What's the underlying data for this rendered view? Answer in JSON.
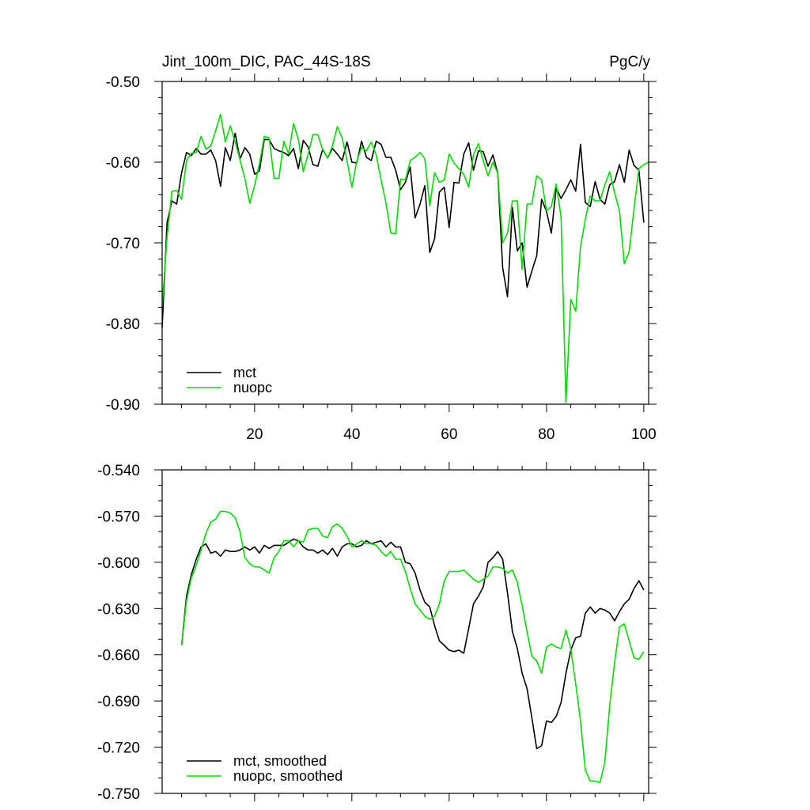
{
  "colors": {
    "mct": "#000000",
    "nuopc": "#00dd00"
  },
  "chart_data": [
    {
      "type": "line",
      "title_left": "Jint_100m_DIC, PAC_44S-18S",
      "title_right": "PgC/y",
      "xlim": [
        1,
        101
      ],
      "ylim": [
        -0.9,
        -0.5
      ],
      "xticks": [
        20,
        40,
        60,
        80,
        100
      ],
      "xticklabels": [
        "20",
        "40",
        "60",
        "80",
        "100"
      ],
      "yticks": [
        -0.9,
        -0.8,
        -0.7,
        -0.6,
        -0.5
      ],
      "yticklabels": [
        "-0.90",
        "-0.80",
        "-0.70",
        "-0.60",
        "-0.50"
      ],
      "legend_location": "lower-left",
      "series": [
        {
          "name": "mct",
          "color": "#000000",
          "x_start": 1,
          "values": [
            -0.805,
            -0.675,
            -0.648,
            -0.652,
            -0.613,
            -0.588,
            -0.592,
            -0.583,
            -0.59,
            -0.59,
            -0.585,
            -0.598,
            -0.63,
            -0.582,
            -0.598,
            -0.564,
            -0.596,
            -0.582,
            -0.59,
            -0.615,
            -0.611,
            -0.572,
            -0.572,
            -0.583,
            -0.586,
            -0.588,
            -0.592,
            -0.583,
            -0.608,
            -0.573,
            -0.581,
            -0.603,
            -0.605,
            -0.584,
            -0.595,
            -0.583,
            -0.59,
            -0.598,
            -0.575,
            -0.6,
            -0.601,
            -0.574,
            -0.594,
            -0.598,
            -0.574,
            -0.578,
            -0.594,
            -0.594,
            -0.61,
            -0.634,
            -0.625,
            -0.606,
            -0.669,
            -0.652,
            -0.629,
            -0.712,
            -0.695,
            -0.637,
            -0.631,
            -0.681,
            -0.625,
            -0.626,
            -0.59,
            -0.576,
            -0.61,
            -0.586,
            -0.587,
            -0.605,
            -0.591,
            -0.614,
            -0.731,
            -0.767,
            -0.656,
            -0.71,
            -0.7,
            -0.755,
            -0.735,
            -0.716,
            -0.646,
            -0.661,
            -0.688,
            -0.632,
            -0.645,
            -0.634,
            -0.622,
            -0.636,
            -0.578,
            -0.65,
            -0.655,
            -0.624,
            -0.646,
            -0.652,
            -0.628,
            -0.624,
            -0.603,
            -0.625,
            -0.585,
            -0.604,
            -0.61,
            -0.675
          ]
        },
        {
          "name": "nuopc",
          "color": "#00dd00",
          "x_start": 1,
          "values": [
            -0.779,
            -0.693,
            -0.636,
            -0.635,
            -0.646,
            -0.598,
            -0.589,
            -0.588,
            -0.568,
            -0.584,
            -0.58,
            -0.561,
            -0.541,
            -0.575,
            -0.555,
            -0.575,
            -0.597,
            -0.62,
            -0.651,
            -0.629,
            -0.602,
            -0.568,
            -0.57,
            -0.62,
            -0.62,
            -0.574,
            -0.59,
            -0.552,
            -0.572,
            -0.612,
            -0.59,
            -0.566,
            -0.566,
            -0.585,
            -0.595,
            -0.58,
            -0.556,
            -0.57,
            -0.598,
            -0.631,
            -0.599,
            -0.582,
            -0.586,
            -0.575,
            -0.591,
            -0.622,
            -0.65,
            -0.688,
            -0.689,
            -0.621,
            -0.622,
            -0.598,
            -0.594,
            -0.588,
            -0.596,
            -0.654,
            -0.613,
            -0.625,
            -0.622,
            -0.59,
            -0.601,
            -0.608,
            -0.615,
            -0.631,
            -0.591,
            -0.577,
            -0.598,
            -0.617,
            -0.6,
            -0.614,
            -0.7,
            -0.688,
            -0.648,
            -0.648,
            -0.733,
            -0.652,
            -0.652,
            -0.617,
            -0.622,
            -0.66,
            -0.655,
            -0.627,
            -0.668,
            -0.898,
            -0.77,
            -0.785,
            -0.705,
            -0.671,
            -0.642,
            -0.648,
            -0.648,
            -0.628,
            -0.612,
            -0.638,
            -0.66,
            -0.726,
            -0.711,
            -0.658,
            -0.608,
            -0.603,
            -0.6
          ]
        }
      ]
    },
    {
      "type": "line",
      "xlim": [
        1,
        101
      ],
      "ylim": [
        -0.75,
        -0.54
      ],
      "xticks": [
        20,
        40,
        60,
        80,
        100
      ],
      "xticklabels": [],
      "yticks": [
        -0.75,
        -0.72,
        -0.69,
        -0.66,
        -0.63,
        -0.6,
        -0.57,
        -0.54
      ],
      "yticklabels": [
        "-0.750",
        "-0.720",
        "-0.690",
        "-0.660",
        "-0.630",
        "-0.600",
        "-0.570",
        "-0.540"
      ],
      "legend_location": "lower-left",
      "series": [
        {
          "name": "mct, smoothed",
          "color": "#000000",
          "x_start": 5,
          "values": [
            -0.654,
            -0.622,
            -0.608,
            -0.598,
            -0.59,
            -0.588,
            -0.594,
            -0.593,
            -0.596,
            -0.592,
            -0.593,
            -0.593,
            -0.592,
            -0.59,
            -0.592,
            -0.59,
            -0.594,
            -0.589,
            -0.591,
            -0.589,
            -0.589,
            -0.589,
            -0.587,
            -0.585,
            -0.586,
            -0.59,
            -0.592,
            -0.592,
            -0.594,
            -0.592,
            -0.595,
            -0.591,
            -0.596,
            -0.59,
            -0.588,
            -0.588,
            -0.59,
            -0.589,
            -0.586,
            -0.588,
            -0.587,
            -0.586,
            -0.59,
            -0.587,
            -0.59,
            -0.59,
            -0.6,
            -0.601,
            -0.607,
            -0.618,
            -0.626,
            -0.629,
            -0.641,
            -0.651,
            -0.654,
            -0.657,
            -0.658,
            -0.657,
            -0.659,
            -0.643,
            -0.627,
            -0.622,
            -0.616,
            -0.6,
            -0.597,
            -0.593,
            -0.598,
            -0.62,
            -0.645,
            -0.656,
            -0.672,
            -0.682,
            -0.701,
            -0.721,
            -0.719,
            -0.703,
            -0.704,
            -0.7,
            -0.691,
            -0.672,
            -0.657,
            -0.649,
            -0.648,
            -0.633,
            -0.629,
            -0.633,
            -0.63,
            -0.631,
            -0.633,
            -0.638,
            -0.632,
            -0.627,
            -0.624,
            -0.617,
            -0.612,
            -0.618
          ]
        },
        {
          "name": "nuopc, smoothed",
          "color": "#00dd00",
          "x_start": 5,
          "values": [
            -0.654,
            -0.625,
            -0.61,
            -0.602,
            -0.592,
            -0.581,
            -0.574,
            -0.572,
            -0.567,
            -0.567,
            -0.568,
            -0.571,
            -0.58,
            -0.597,
            -0.601,
            -0.603,
            -0.603,
            -0.605,
            -0.607,
            -0.597,
            -0.593,
            -0.586,
            -0.586,
            -0.59,
            -0.586,
            -0.587,
            -0.579,
            -0.578,
            -0.578,
            -0.583,
            -0.584,
            -0.577,
            -0.575,
            -0.578,
            -0.583,
            -0.59,
            -0.588,
            -0.586,
            -0.588,
            -0.588,
            -0.589,
            -0.593,
            -0.596,
            -0.593,
            -0.598,
            -0.598,
            -0.606,
            -0.617,
            -0.627,
            -0.631,
            -0.635,
            -0.637,
            -0.635,
            -0.627,
            -0.612,
            -0.606,
            -0.606,
            -0.606,
            -0.605,
            -0.608,
            -0.611,
            -0.613,
            -0.611,
            -0.609,
            -0.603,
            -0.603,
            -0.604,
            -0.607,
            -0.605,
            -0.613,
            -0.628,
            -0.645,
            -0.661,
            -0.664,
            -0.672,
            -0.655,
            -0.653,
            -0.655,
            -0.656,
            -0.644,
            -0.656,
            -0.679,
            -0.703,
            -0.735,
            -0.742,
            -0.742,
            -0.743,
            -0.73,
            -0.693,
            -0.665,
            -0.642,
            -0.64,
            -0.651,
            -0.662,
            -0.663,
            -0.658
          ]
        }
      ]
    }
  ]
}
